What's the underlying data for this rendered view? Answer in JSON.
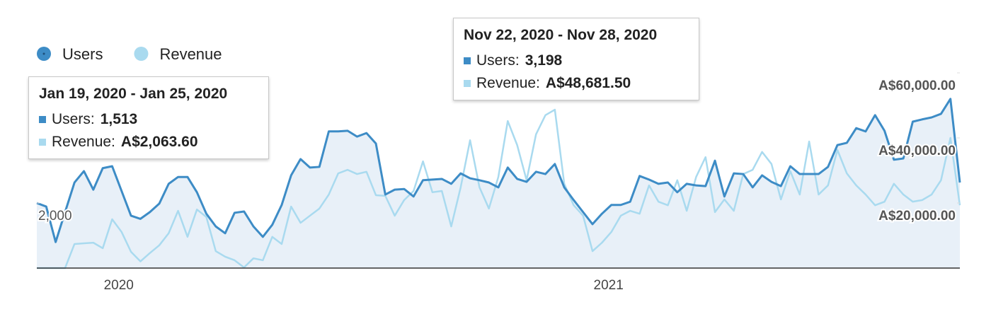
{
  "chart_data": {
    "type": "line",
    "legend": "top-left",
    "categories": [
      null,
      null,
      null,
      null,
      null,
      null,
      null,
      null,
      null,
      "2020",
      null,
      null,
      null,
      null,
      null,
      null,
      null,
      null,
      null,
      null,
      null,
      null,
      null,
      null,
      null,
      null,
      null,
      null,
      null,
      null,
      null,
      null,
      null,
      null,
      null,
      null,
      null,
      null,
      null,
      null,
      null,
      null,
      null,
      null,
      null,
      null,
      null,
      null,
      null,
      null,
      null,
      null,
      null,
      null,
      null,
      null,
      null,
      null,
      null,
      null,
      null,
      "2021",
      null,
      null,
      null,
      null,
      null,
      null,
      null,
      null,
      null,
      null,
      null,
      null,
      null,
      null,
      null,
      null,
      null,
      null,
      null,
      null,
      null,
      null,
      null,
      null,
      null,
      null,
      null,
      null,
      null,
      null,
      null,
      null,
      null,
      null,
      null,
      null,
      null
    ],
    "ylim": [
      0,
      6000
    ],
    "yticks": [
      {
        "value": 2000,
        "label": "2,000"
      }
    ],
    "y2lim": [
      0,
      60000
    ],
    "y2ticks": [
      {
        "value": 20000,
        "label": "A$20,000.00"
      },
      {
        "value": 40000,
        "label": "A$40,000.00"
      },
      {
        "value": 60000,
        "label": "A$60,000.00"
      }
    ],
    "series": [
      {
        "name": "Users",
        "color": "#3d8cc6",
        "area_color": "#e8f0f8",
        "values": [
          2000,
          1890,
          800,
          1720,
          2630,
          2980,
          2410,
          3070,
          3130,
          2370,
          1610,
          1513,
          1720,
          1980,
          2590,
          2800,
          2800,
          2330,
          1670,
          1280,
          1070,
          1700,
          1740,
          1280,
          960,
          1330,
          1940,
          2850,
          3350,
          3090,
          3110,
          4200,
          4200,
          4220,
          4040,
          4150,
          3830,
          2260,
          2410,
          2430,
          2200,
          2700,
          2720,
          2740,
          2590,
          2910,
          2760,
          2700,
          2630,
          2480,
          3090,
          2740,
          2650,
          2960,
          2890,
          3198,
          2480,
          2090,
          1720,
          1350,
          1670,
          1940,
          1940,
          2040,
          2830,
          2720,
          2590,
          2630,
          2330,
          2590,
          2540,
          2520,
          3300,
          2200,
          2910,
          2890,
          2480,
          2850,
          2650,
          2520,
          3130,
          2890,
          2890,
          2890,
          3110,
          3780,
          3850,
          4300,
          4200,
          4700,
          4220,
          3330,
          3370,
          4500,
          4570,
          4630,
          4740,
          5200,
          2630
        ]
      },
      {
        "name": "Revenue",
        "color": "#a9daef",
        "axis": "y2",
        "values": [
          0,
          0,
          0,
          0,
          7400,
          7600,
          7800,
          6100,
          15000,
          11100,
          5000,
          2063.6,
          4600,
          7000,
          10700,
          17600,
          9600,
          18000,
          15700,
          5200,
          3500,
          2400,
          200,
          3000,
          2400,
          9600,
          7400,
          18900,
          13900,
          16100,
          18300,
          22600,
          29100,
          30200,
          28900,
          29600,
          22400,
          22200,
          16100,
          20900,
          23700,
          32800,
          23300,
          23700,
          12800,
          24800,
          39300,
          24800,
          18300,
          28000,
          45200,
          37800,
          27000,
          41100,
          47000,
          48681.5,
          25900,
          19300,
          16100,
          5200,
          7800,
          11100,
          16100,
          17600,
          16700,
          25400,
          20400,
          19300,
          27000,
          17600,
          28000,
          34100,
          17200,
          21100,
          17600,
          28900,
          30200,
          35700,
          32000,
          21100,
          29800,
          22600,
          38900,
          22600,
          25400,
          36300,
          29100,
          25400,
          22600,
          19300,
          20400,
          25900,
          22600,
          20400,
          20900,
          22600,
          27000,
          40000,
          19300
        ]
      }
    ]
  },
  "tooltips": [
    {
      "title": "Jan 19, 2020 - Jan 25, 2020",
      "rows": [
        {
          "label": "Users:",
          "value": "1,513"
        },
        {
          "label": "Revenue:",
          "value": "A$2,063.60"
        }
      ]
    },
    {
      "title": "Nov 22, 2020 - Nov 28, 2020",
      "rows": [
        {
          "label": "Users:",
          "value": "3,198"
        },
        {
          "label": "Revenue:",
          "value": "A$48,681.50"
        }
      ]
    }
  ]
}
